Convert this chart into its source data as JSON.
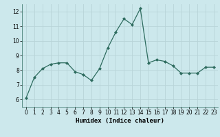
{
  "x": [
    0,
    1,
    2,
    3,
    4,
    5,
    6,
    7,
    8,
    9,
    10,
    11,
    12,
    13,
    14,
    15,
    16,
    17,
    18,
    19,
    20,
    21,
    22,
    23
  ],
  "y": [
    6.1,
    7.5,
    8.1,
    8.4,
    8.5,
    8.5,
    7.9,
    7.7,
    7.3,
    8.1,
    9.5,
    10.6,
    11.5,
    11.1,
    12.2,
    8.5,
    8.7,
    8.6,
    8.3,
    7.8,
    7.8,
    7.8,
    8.2,
    8.2
  ],
  "xlim": [
    -0.5,
    23.5
  ],
  "ylim": [
    5.5,
    12.5
  ],
  "yticks": [
    6,
    7,
    8,
    9,
    10,
    11,
    12
  ],
  "xticks": [
    0,
    1,
    2,
    3,
    4,
    5,
    6,
    7,
    8,
    9,
    10,
    11,
    12,
    13,
    14,
    15,
    16,
    17,
    18,
    19,
    20,
    21,
    22,
    23
  ],
  "xlabel": "Humidex (Indice chaleur)",
  "line_color": "#2d6b5e",
  "marker": "D",
  "marker_size": 2.0,
  "bg_color": "#cce8ec",
  "grid_color": "#b8d4d8",
  "tick_fontsize": 5.5,
  "xlabel_fontsize": 6.5
}
